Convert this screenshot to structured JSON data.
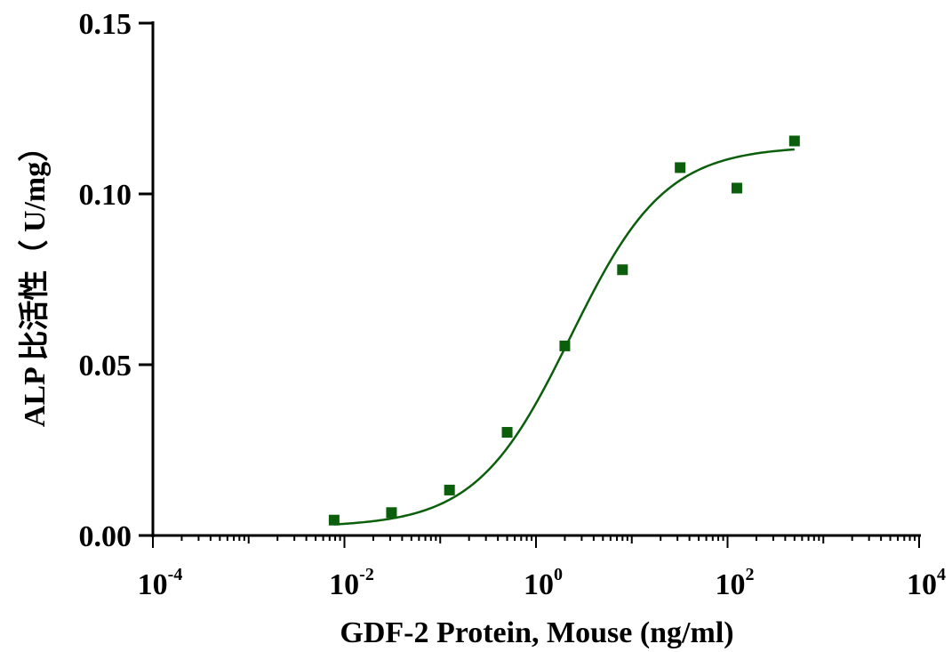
{
  "chart_data": {
    "type": "scatter",
    "xlabel": "GDF-2 Protein, Mouse  (ng/ml)",
    "ylabel": "ALP 比活性（ U/mg）",
    "xscale": "log",
    "xlim": [
      0.0001,
      10000
    ],
    "ylim": [
      0,
      0.15
    ],
    "x_ticks": [
      {
        "base": "10",
        "exp": "-4",
        "value": 0.0001
      },
      {
        "base": "10",
        "exp": "-2",
        "value": 0.01
      },
      {
        "base": "10",
        "exp": "0",
        "value": 1
      },
      {
        "base": "10",
        "exp": "2",
        "value": 100
      },
      {
        "base": "10",
        "exp": "4",
        "value": 10000
      }
    ],
    "y_ticks": [
      {
        "label": "0.00",
        "value": 0
      },
      {
        "label": "0.05",
        "value": 0.05
      },
      {
        "label": "0.10",
        "value": 0.1
      },
      {
        "label": "0.15",
        "value": 0.15
      }
    ],
    "points": [
      {
        "x": 0.0078,
        "y": 0.0045
      },
      {
        "x": 0.031,
        "y": 0.0067
      },
      {
        "x": 0.125,
        "y": 0.0133
      },
      {
        "x": 0.5,
        "y": 0.0302
      },
      {
        "x": 2.0,
        "y": 0.0555
      },
      {
        "x": 8.0,
        "y": 0.0778
      },
      {
        "x": 32,
        "y": 0.1077
      },
      {
        "x": 125,
        "y": 0.1017
      },
      {
        "x": 500,
        "y": 0.1155
      }
    ],
    "fit": {
      "model": "4PL",
      "bottom": 0.0025,
      "top": 0.114,
      "ec50": 2.3,
      "hill": 0.88,
      "x_range": [
        0.0078,
        500
      ]
    },
    "color": "#0b5e0b",
    "grid": false
  }
}
